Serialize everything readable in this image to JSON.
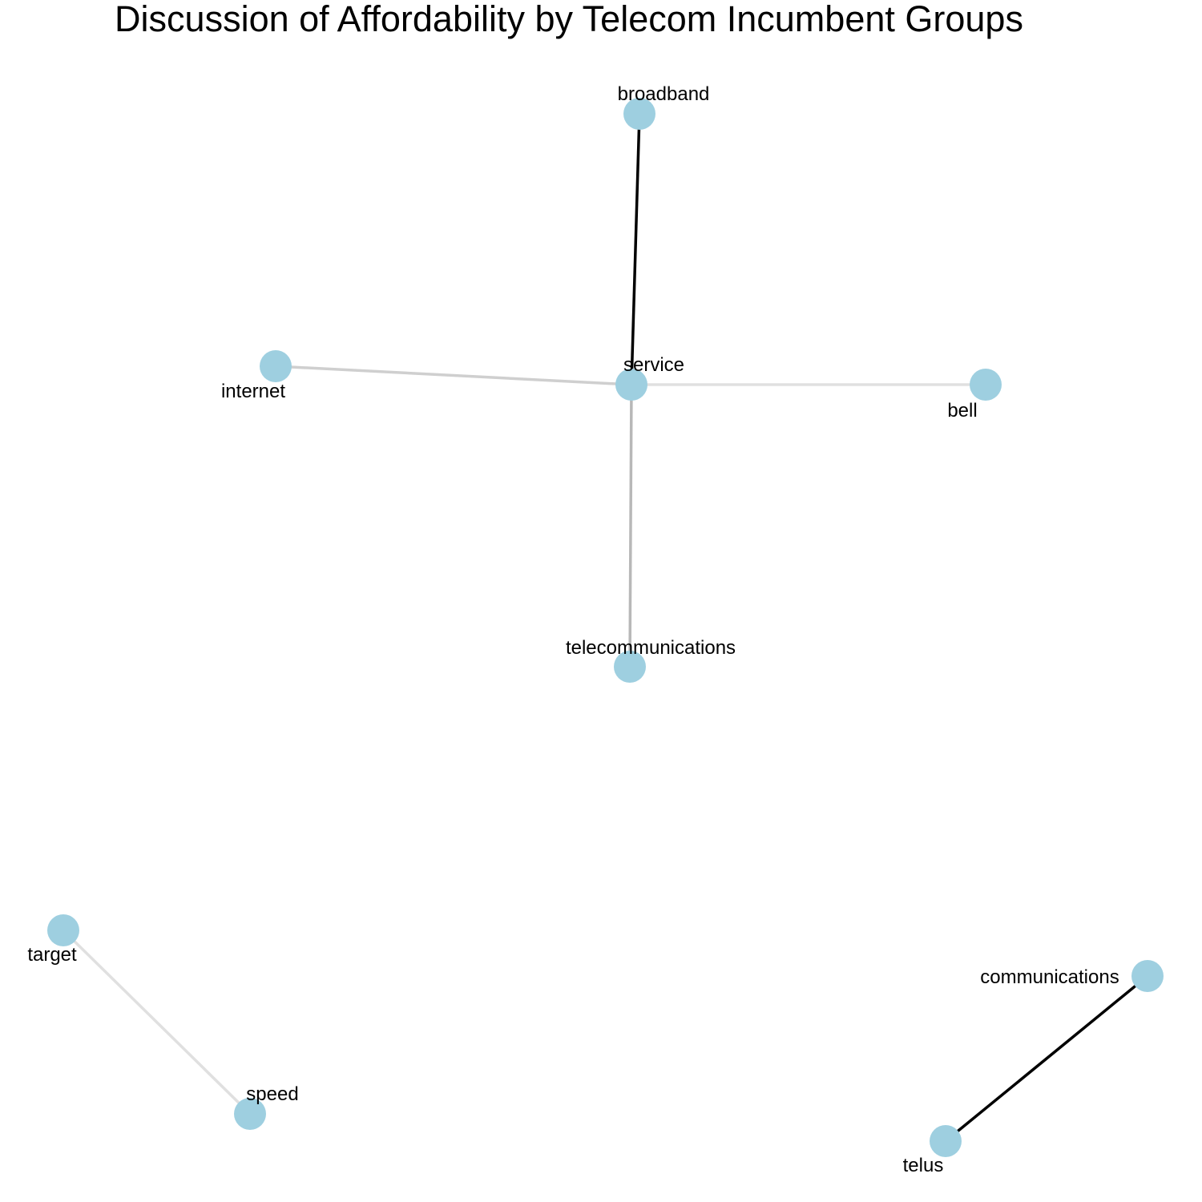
{
  "title": "Discussion of Affordability by Telecom Incumbent Groups",
  "colors": {
    "node": "#9ecfe0",
    "edge_strong": "#000000",
    "edge_medium": "#b8b8b8",
    "edge_light": "#cfcfcf",
    "edge_faint": "#e0e0e0",
    "background": "#ffffff",
    "text": "#000000"
  },
  "nodes": [
    {
      "id": "broadband",
      "label": "broadband"
    },
    {
      "id": "service",
      "label": "service"
    },
    {
      "id": "internet",
      "label": "internet"
    },
    {
      "id": "bell",
      "label": "bell"
    },
    {
      "id": "telecommunications",
      "label": "telecommunications"
    },
    {
      "id": "target",
      "label": "target"
    },
    {
      "id": "speed",
      "label": "speed"
    },
    {
      "id": "communications",
      "label": "communications"
    },
    {
      "id": "telus",
      "label": "telus"
    }
  ],
  "edges": [
    {
      "source": "broadband",
      "target": "service",
      "color": "#000000"
    },
    {
      "source": "internet",
      "target": "service",
      "color": "#cfcfcf"
    },
    {
      "source": "service",
      "target": "bell",
      "color": "#e0e0e0"
    },
    {
      "source": "service",
      "target": "telecommunications",
      "color": "#b8b8b8"
    },
    {
      "source": "target",
      "target": "speed",
      "color": "#e0e0e0"
    },
    {
      "source": "communications",
      "target": "telus",
      "color": "#000000"
    }
  ]
}
